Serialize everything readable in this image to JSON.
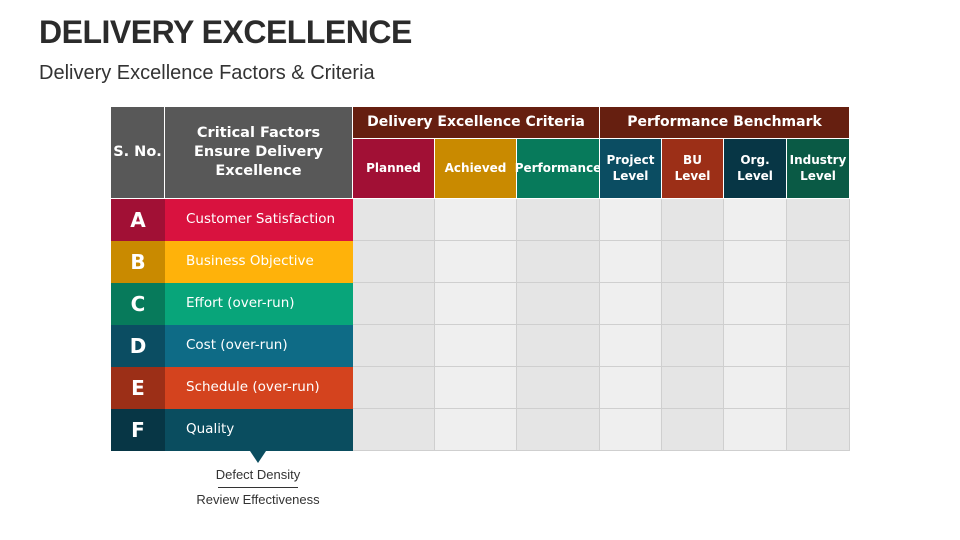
{
  "title": "DELIVERY EXCELLENCE",
  "subtitle": "Delivery Excellence Factors & Criteria",
  "table": {
    "sno_header": "S. No.",
    "factor_header": "Critical Factors Ensure Delivery Excellence",
    "groups": [
      {
        "label": "Delivery Excellence Criteria"
      },
      {
        "label": "Performance Benchmark"
      }
    ],
    "columns": [
      {
        "label": "Planned",
        "color": "#a11035"
      },
      {
        "label": "Achieved",
        "color": "#c98a00"
      },
      {
        "label": "Performance",
        "color": "#077a5b"
      },
      {
        "label": "Project Level",
        "color": "#0b4d62"
      },
      {
        "label": "BU Level",
        "color": "#9c2f17"
      },
      {
        "label": "Org. Level",
        "color": "#073645"
      },
      {
        "label": "Industry Level",
        "color": "#0a5a45"
      }
    ],
    "rows": [
      {
        "letter": "A",
        "factor": "Customer Satisfaction",
        "dark": "#a11035",
        "light": "#d9123f"
      },
      {
        "letter": "B",
        "factor": "Business Objective",
        "dark": "#c98a00",
        "light": "#ffb20a"
      },
      {
        "letter": "C",
        "factor": "Effort (over-run)",
        "dark": "#077a5b",
        "light": "#08a57a"
      },
      {
        "letter": "D",
        "factor": "Cost (over-run)",
        "dark": "#0b4d62",
        "light": "#0e6b86"
      },
      {
        "letter": "E",
        "factor": "Schedule (over-run)",
        "dark": "#9c2f17",
        "light": "#d4431e"
      },
      {
        "letter": "F",
        "factor": "Quality",
        "dark": "#073645",
        "light": "#0a4d5f"
      }
    ]
  },
  "quality_notes": [
    "Defect Density",
    "Review Effectiveness"
  ]
}
